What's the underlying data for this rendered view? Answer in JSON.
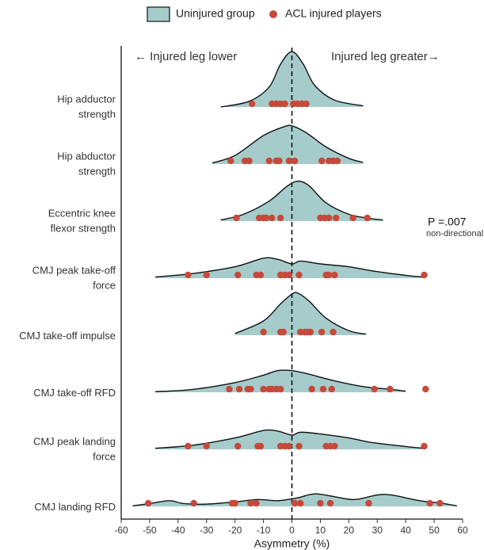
{
  "chart_data": {
    "type": "ridgeline",
    "xlabel": "Asymmetry (%)",
    "xlim": [
      -60,
      60
    ],
    "xticks": [
      -60,
      -50,
      -40,
      -30,
      -20,
      -10,
      0,
      10,
      20,
      30,
      40,
      50,
      60
    ],
    "categories": [
      "Hip adductor\nstrength",
      "Hip abductor\nstrength",
      "Eccentric knee\nflexor strength",
      "CMJ peak take-off\nforce",
      "CMJ take-off impulse",
      "CMJ take-off RFD",
      "CMJ peak landing\nforce",
      "CMJ landing RFD"
    ],
    "annotations": {
      "left": "← Injured leg lower",
      "right": "Injured leg greater→",
      "p_value": "P =.007",
      "p_note": "non-directional"
    },
    "series": [
      {
        "name": "Uninjured group",
        "color": "#a5cccb",
        "density": [
          {
            "x": [
              -25,
              -15,
              -8,
              -4,
              0,
              4,
              8,
              15,
              25
            ],
            "y": [
              0.0,
              0.1,
              0.35,
              0.75,
              0.97,
              0.75,
              0.38,
              0.12,
              0.02
            ]
          },
          {
            "x": [
              -28,
              -20,
              -10,
              -3,
              0,
              5,
              12,
              20,
              25
            ],
            "y": [
              0.02,
              0.15,
              0.5,
              0.65,
              0.67,
              0.55,
              0.3,
              0.1,
              0.03
            ]
          },
          {
            "x": [
              -25,
              -17,
              -8,
              -2,
              2,
              6,
              12,
              20,
              27,
              32
            ],
            "y": [
              0.02,
              0.12,
              0.35,
              0.6,
              0.7,
              0.62,
              0.32,
              0.12,
              0.05,
              0.02
            ]
          },
          {
            "x": [
              -48,
              -35,
              -20,
              -10,
              -5,
              0,
              3,
              10,
              20,
              28,
              40,
              46
            ],
            "y": [
              0.02,
              0.08,
              0.2,
              0.35,
              0.33,
              0.25,
              0.3,
              0.25,
              0.2,
              0.13,
              0.05,
              0.02
            ]
          },
          {
            "x": [
              -20,
              -10,
              -4,
              0,
              2,
              6,
              12,
              20,
              26
            ],
            "y": [
              0.03,
              0.25,
              0.55,
              0.72,
              0.74,
              0.6,
              0.3,
              0.08,
              0.02
            ]
          },
          {
            "x": [
              -48,
              -35,
              -20,
              -10,
              -5,
              0,
              5,
              15,
              25,
              35,
              40
            ],
            "y": [
              0.01,
              0.05,
              0.17,
              0.3,
              0.38,
              0.38,
              0.33,
              0.2,
              0.1,
              0.05,
              0.02
            ]
          },
          {
            "x": [
              -48,
              -35,
              -20,
              -10,
              -5,
              0,
              3,
              10,
              20,
              28,
              40,
              46
            ],
            "y": [
              0.02,
              0.07,
              0.2,
              0.33,
              0.32,
              0.25,
              0.3,
              0.27,
              0.2,
              0.12,
              0.05,
              0.02
            ]
          },
          {
            "x": [
              -56,
              -50,
              -43,
              -38,
              -30,
              -20,
              -12,
              -5,
              2,
              8,
              15,
              22,
              30,
              35,
              45,
              52,
              58
            ],
            "y": [
              0.01,
              0.05,
              0.1,
              0.05,
              0.04,
              0.08,
              0.12,
              0.1,
              0.15,
              0.22,
              0.17,
              0.12,
              0.2,
              0.2,
              0.1,
              0.06,
              0.01
            ]
          }
        ]
      },
      {
        "name": "ACL injured players",
        "color": "#c6493a",
        "values": [
          [
            -14,
            -7,
            -5.5,
            -4,
            -2.5,
            0.5,
            2,
            3.5,
            5
          ],
          [
            -21.5,
            -16.5,
            -15,
            -8,
            -5.5,
            -4.5,
            -1,
            1,
            10.5,
            13,
            14.5,
            16
          ],
          [
            -19.5,
            -11.5,
            -10,
            -9,
            -7,
            -4,
            10,
            11.5,
            13,
            15.5,
            21.5,
            26.5
          ],
          [
            -36.5,
            -30,
            -19,
            -12.5,
            -11,
            -4,
            -2.5,
            -1,
            2.5,
            12,
            13,
            15,
            46.5
          ],
          [
            -10,
            -4,
            -3,
            3,
            4.5,
            5.5,
            6.5,
            10.5,
            14.5
          ],
          [
            -22,
            -18.5,
            -15.5,
            -14.5,
            -10,
            -8,
            -7,
            -5.5,
            -4,
            7,
            11,
            14,
            29,
            34.5,
            47
          ],
          [
            -36.5,
            -30,
            -19,
            -12,
            -11,
            -4,
            -2.5,
            -1,
            2.5,
            12,
            13.5,
            15,
            46.5
          ],
          [
            -50.5,
            -34.5,
            -21,
            -20,
            -14.5,
            -12.5,
            1,
            3,
            10,
            13.5,
            27,
            48.5,
            52
          ]
        ]
      }
    ]
  }
}
